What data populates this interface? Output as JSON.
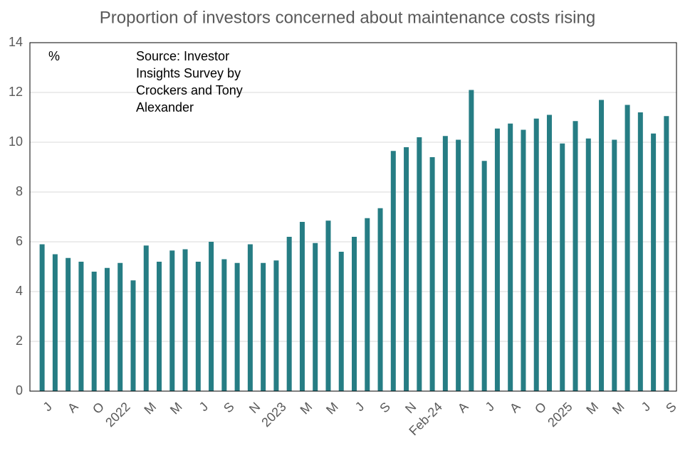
{
  "chart_data": {
    "type": "bar",
    "title": "Proportion of investors concerned about maintenance costs rising",
    "annotations": [
      "%",
      [
        "Source: Investor",
        "Insights Survey by",
        "Crockers and Tony",
        "Alexander"
      ]
    ],
    "categories": [
      "J",
      null,
      "A",
      null,
      "O",
      null,
      "2022",
      null,
      "M",
      null,
      "M",
      null,
      "J",
      null,
      "S",
      null,
      "N",
      null,
      "2023",
      null,
      "M",
      null,
      "M",
      null,
      "J",
      null,
      "S",
      null,
      "N",
      null,
      "Feb-24",
      null,
      "A",
      null,
      "J",
      null,
      "A",
      null,
      "O",
      null,
      "2025",
      null,
      "M",
      null,
      "M",
      null,
      "J",
      null,
      "S"
    ],
    "values": [
      5.9,
      5.5,
      5.35,
      5.2,
      4.8,
      4.95,
      5.15,
      4.45,
      5.85,
      5.2,
      5.65,
      5.7,
      5.2,
      6.0,
      5.3,
      5.15,
      5.9,
      5.15,
      5.25,
      6.2,
      6.8,
      5.95,
      6.85,
      5.6,
      6.2,
      6.95,
      7.35,
      9.65,
      9.8,
      10.2,
      9.4,
      10.25,
      10.1,
      12.1,
      9.25,
      10.55,
      10.75,
      10.5,
      10.95,
      11.1,
      9.95,
      10.85,
      10.15,
      11.7,
      10.1,
      11.5,
      11.2,
      10.35,
      11.05
    ],
    "color": "#267d84",
    "ylim": [
      0,
      14
    ],
    "yticks": [
      0,
      2,
      4,
      6,
      8,
      10,
      12,
      14
    ],
    "grid": true
  }
}
